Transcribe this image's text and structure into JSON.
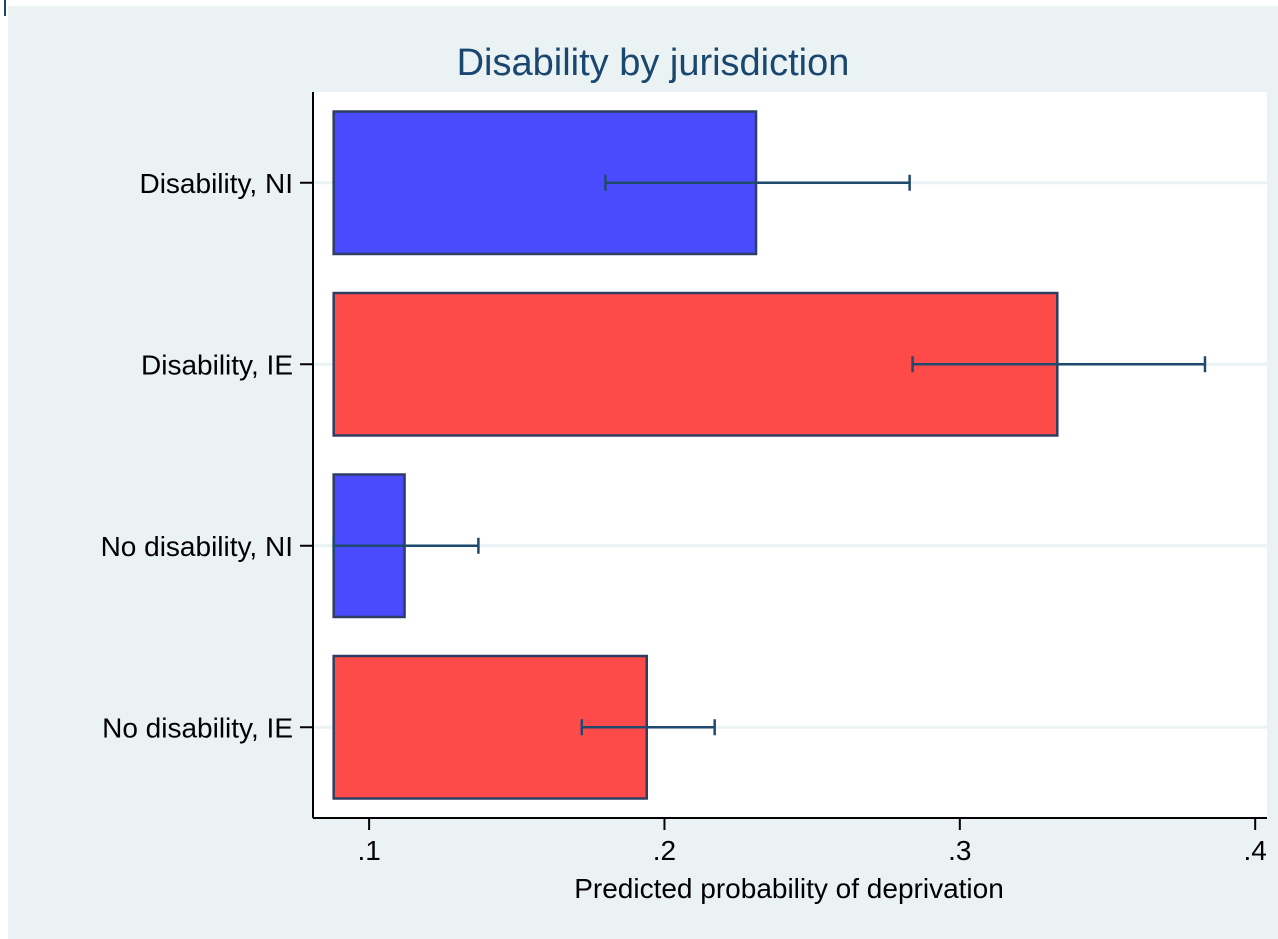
{
  "chart_data": {
    "type": "bar",
    "orientation": "horizontal",
    "title": "Disability by jurisdiction",
    "xlabel": "Predicted probability of deprivation",
    "ylabel": "",
    "xlim": [
      0.081,
      0.404
    ],
    "x_ticks": [
      0.1,
      0.2,
      0.3,
      0.4
    ],
    "x_tick_labels": [
      ".1",
      ".2",
      ".3",
      ".4"
    ],
    "bar_base": 0.088,
    "grid": "horizontal",
    "categories": [
      "Disability, NI",
      "Disability, IE",
      "No disability, NI",
      "No disability, IE"
    ],
    "values": [
      0.231,
      0.333,
      0.112,
      0.194
    ],
    "ci_low": [
      0.18,
      0.284,
      0.088,
      0.172
    ],
    "ci_high": [
      0.283,
      0.383,
      0.137,
      0.217
    ],
    "bar_colors": [
      "#4a4aff",
      "#ff4a4a",
      "#4a4aff",
      "#ff4a4a"
    ],
    "bar_edge_color": "#2e3e63",
    "errorbar_color": "#1f4a6e",
    "background_color": "#eaf2f3",
    "plot_background_color": "#ffffff"
  }
}
